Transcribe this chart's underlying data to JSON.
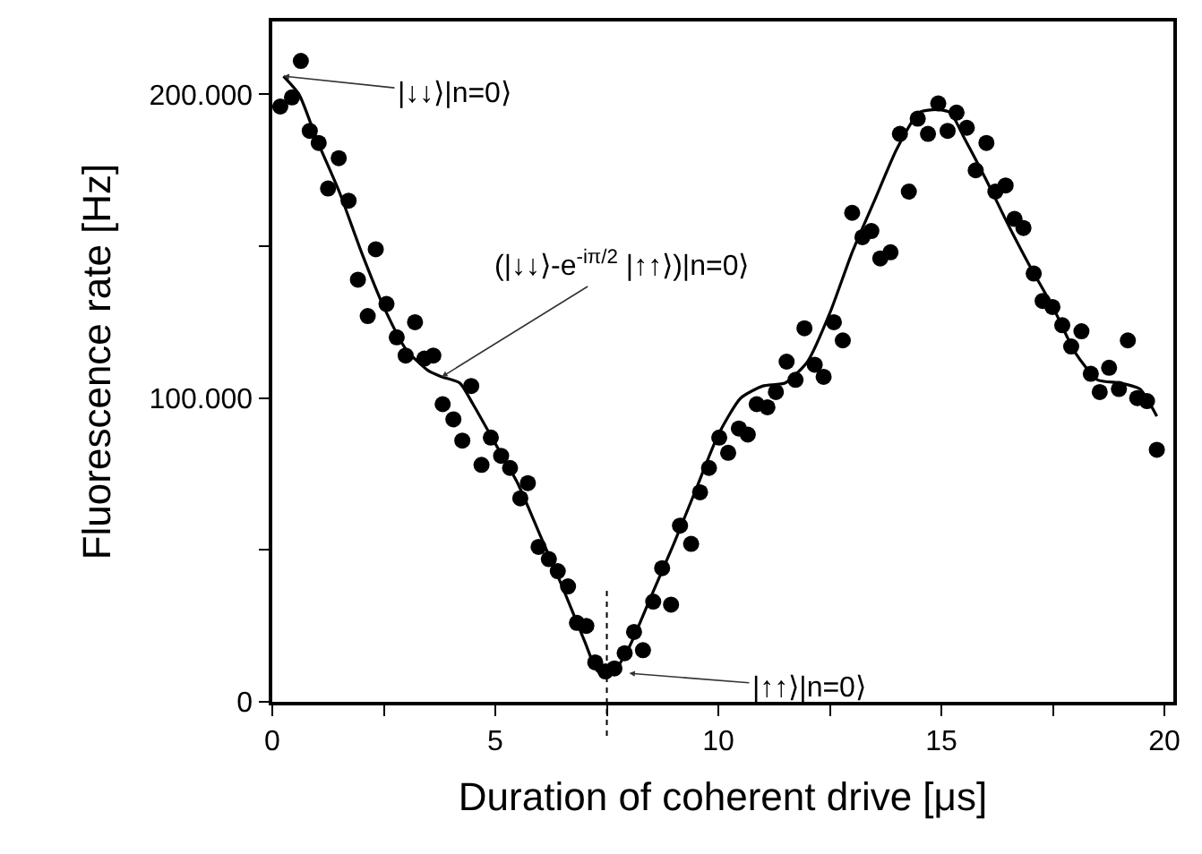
{
  "chart_data": {
    "type": "scatter",
    "xlabel": "Duration of coherent drive [μs]",
    "ylabel": "Fluorescence rate [Hz]",
    "xlim": [
      0,
      20.2
    ],
    "ylim": [
      0,
      224000
    ],
    "xticks": [
      0,
      {
        "value": 2.5,
        "label": null
      },
      5,
      {
        "value": 7.5,
        "label": null
      },
      10,
      {
        "value": 12.5,
        "label": null
      },
      15,
      {
        "value": 17.5,
        "label": null
      },
      20
    ],
    "yticks": [
      {
        "value": 0,
        "label": "0"
      },
      {
        "value": 50000,
        "label": null
      },
      {
        "value": 100000,
        "label": "100.000"
      },
      {
        "value": 150000,
        "label": null
      },
      {
        "value": 200000,
        "label": "200.000"
      }
    ],
    "legend": false,
    "series": [
      {
        "marker": "circle",
        "color": "#000000",
        "x": [
          0.18,
          0.44,
          0.64,
          0.84,
          1.04,
          1.25,
          1.49,
          1.71,
          1.92,
          2.14,
          2.32,
          2.56,
          2.79,
          2.99,
          3.2,
          3.41,
          3.61,
          3.82,
          4.06,
          4.26,
          4.46,
          4.69,
          4.9,
          5.13,
          5.33,
          5.56,
          5.73,
          5.97,
          6.2,
          6.4,
          6.63,
          6.83,
          7.04,
          7.24,
          7.47,
          7.67,
          7.9,
          8.11,
          8.31,
          8.54,
          8.74,
          8.94,
          9.14,
          9.39,
          9.59,
          9.79,
          10.02,
          10.22,
          10.46,
          10.66,
          10.86,
          11.1,
          11.29,
          11.53,
          11.73,
          11.93,
          12.16,
          12.36,
          12.59,
          12.79,
          13.0,
          13.23,
          13.43,
          13.63,
          13.86,
          14.07,
          14.27,
          14.47,
          14.7,
          14.93,
          15.14,
          15.34,
          15.57,
          15.77,
          16.01,
          16.21,
          16.44,
          16.64,
          16.84,
          17.07,
          17.27,
          17.49,
          17.71,
          17.91,
          18.14,
          18.35,
          18.55,
          18.76,
          18.98,
          19.18,
          19.39,
          19.61,
          19.83
        ],
        "values": [
          196000,
          199000,
          211000,
          188000,
          184000,
          169000,
          179000,
          165000,
          139000,
          127000,
          149000,
          131000,
          120000,
          114000,
          125000,
          113000,
          114000,
          98000,
          93000,
          86000,
          104000,
          78000,
          87000,
          81000,
          77000,
          67000,
          72000,
          51000,
          47000,
          43000,
          38000,
          26000,
          25000,
          13000,
          10000,
          11000,
          16000,
          23000,
          17000,
          33000,
          44000,
          32000,
          58000,
          52000,
          69000,
          77000,
          87000,
          82000,
          90000,
          88000,
          98000,
          97000,
          102000,
          112000,
          106000,
          123000,
          111000,
          107000,
          125000,
          119000,
          161000,
          153000,
          155000,
          146000,
          148000,
          187000,
          168000,
          192000,
          187000,
          197000,
          188000,
          194000,
          189000,
          175000,
          184000,
          168000,
          170000,
          159000,
          156000,
          141000,
          132000,
          130000,
          124000,
          117000,
          122000,
          108000,
          102000,
          110000,
          103000,
          119000,
          100000,
          99000,
          83000
        ]
      },
      {
        "type": "line",
        "line_style": "solid",
        "color": "#000000",
        "x": [
          0.25,
          0.6,
          1.0,
          1.5,
          2.0,
          2.5,
          3.0,
          3.5,
          3.8,
          4.2,
          4.5,
          5.0,
          5.5,
          6.0,
          6.5,
          7.0,
          7.3,
          7.6,
          8.0,
          8.5,
          9.0,
          9.5,
          10.0,
          10.5,
          11.0,
          11.5,
          12.0,
          12.5,
          13.0,
          13.5,
          14.0,
          14.5,
          14.9,
          15.2,
          15.5,
          16.0,
          16.5,
          17.0,
          17.5,
          18.0,
          18.5,
          19.0,
          19.45,
          19.83
        ],
        "values": [
          206000,
          200000,
          185000,
          168000,
          148000,
          130000,
          116000,
          109000,
          107000,
          105000,
          98000,
          85000,
          72000,
          55000,
          38000,
          20000,
          10000,
          9000,
          18000,
          35000,
          52000,
          70000,
          88000,
          100000,
          104000,
          105000,
          112000,
          128000,
          148000,
          165000,
          182000,
          194000,
          195000,
          194000,
          186000,
          172000,
          157000,
          143000,
          130000,
          115000,
          106000,
          105000,
          103000,
          94000
        ]
      }
    ],
    "ref_lines": [
      {
        "axis": "x",
        "value": 7.5,
        "color": "#000000",
        "line_style": "dotted"
      }
    ],
    "annotations": [
      {
        "text": "|↓↓⟩|n=0⟩",
        "x": 0.25,
        "y": 206000
      },
      {
        "text": "(|↓↓⟩-e$^{-iπ/2}$ |↑↑⟩)|n=0⟩",
        "x": 3.8,
        "y": 107000
      },
      {
        "text": "|↑↑⟩|n=0⟩",
        "x": 8.0,
        "y": 9400
      }
    ]
  }
}
